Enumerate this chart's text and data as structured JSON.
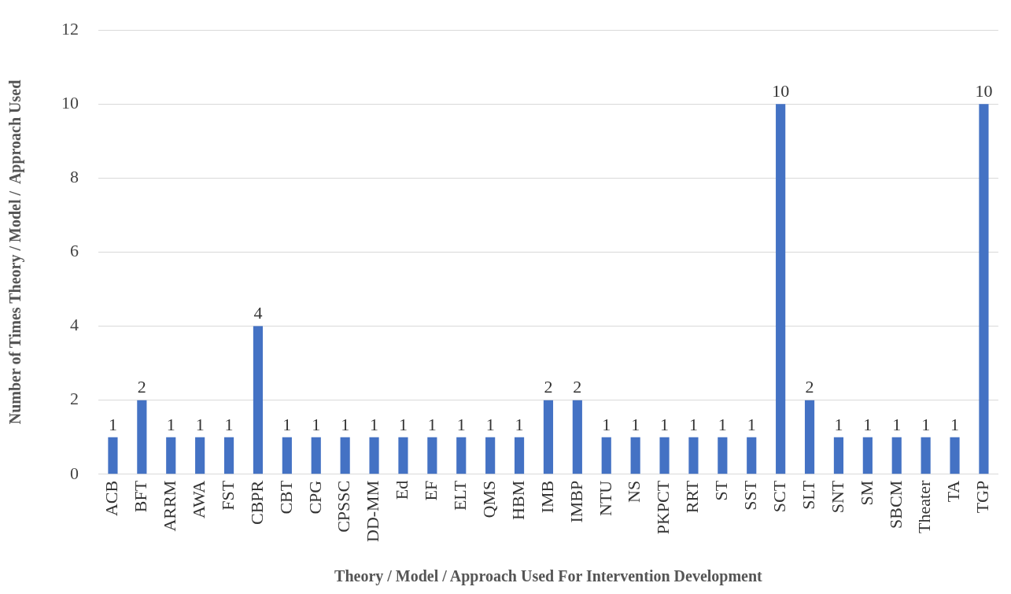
{
  "chart_data": {
    "type": "bar",
    "xlabel": "Theory / Model / Approach Used For Intervention Development",
    "ylabel": "Number of Times Theory / Model /  Approach Used",
    "categories": [
      "ACB",
      "BFT",
      "ARRM",
      "AWA",
      "FST",
      "CBPR",
      "CBT",
      "CPG",
      "CPSSC",
      "DD-MM",
      "Ed",
      "EF",
      "ELT",
      "QMS",
      "HBM",
      "IMB",
      "IMBP",
      "NTU",
      "NS",
      "PKPCT",
      "RRT",
      "ST",
      "SST",
      "SCT",
      "SLT",
      "SNT",
      "SM",
      "SBCM",
      "Theater",
      "TA",
      "TGP"
    ],
    "values": [
      1,
      2,
      1,
      1,
      1,
      4,
      1,
      1,
      1,
      1,
      1,
      1,
      1,
      1,
      1,
      2,
      2,
      1,
      1,
      1,
      1,
      1,
      1,
      10,
      2,
      1,
      1,
      1,
      1,
      1,
      10
    ],
    "color": "#4472c4",
    "ylim": [
      0,
      12
    ],
    "yticks": [
      0,
      2,
      4,
      6,
      8,
      10,
      12
    ],
    "grid": "y",
    "data_labels": true,
    "legend": false
  }
}
